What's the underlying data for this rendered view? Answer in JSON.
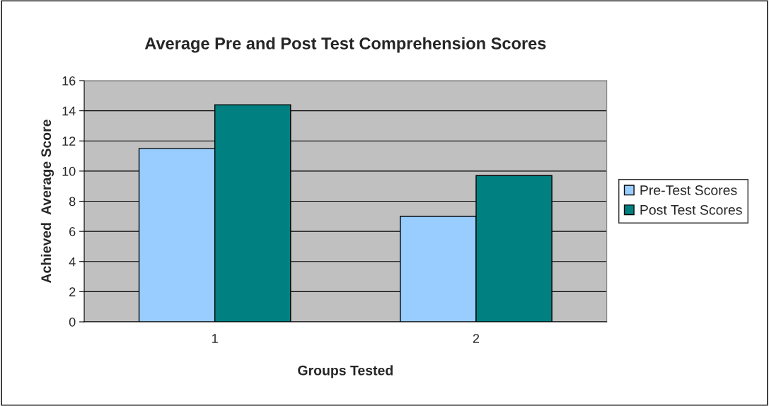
{
  "chart_data": {
    "type": "bar",
    "title": "Average Pre and Post Test Comprehension Scores",
    "xlabel": "Groups Tested",
    "ylabel": "Achieved  Average Score",
    "categories": [
      "1",
      "2"
    ],
    "series": [
      {
        "name": "Pre-Test Scores",
        "color": "#99ccff",
        "values": [
          11.5,
          7
        ]
      },
      {
        "name": "Post Test Scores",
        "color": "#008080",
        "values": [
          14.4,
          9.7
        ]
      }
    ],
    "ylim": [
      0,
      16
    ],
    "yticks": [
      0,
      2,
      4,
      6,
      8,
      10,
      12,
      14,
      16
    ],
    "grid": "y",
    "legend": "right"
  }
}
